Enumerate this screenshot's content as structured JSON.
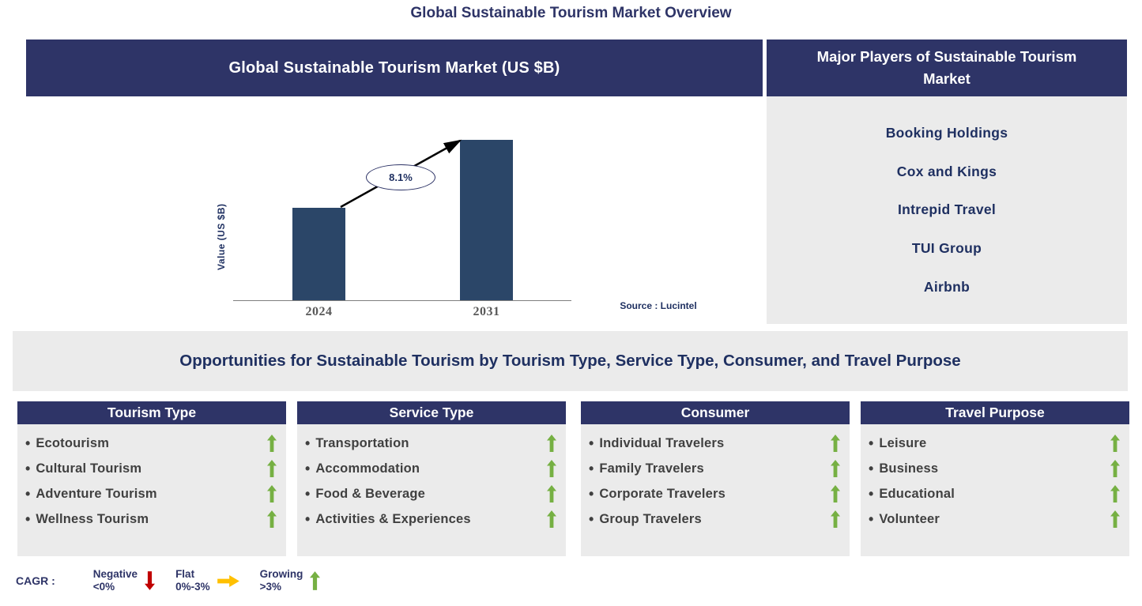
{
  "page_title": "Global Sustainable Tourism Market Overview",
  "chart_panel": {
    "header": "Global Sustainable Tourism Market (US $B)",
    "source": "Source : Lucintel"
  },
  "chart_data": {
    "type": "bar",
    "title": "Global Sustainable Tourism Market (US $B)",
    "categories": [
      "2024",
      "2031"
    ],
    "values": [
      1,
      1.73
    ],
    "ylabel": "Value (US $B)",
    "xlabel": "",
    "cagr_annotation": "8.1%",
    "bar_color": "#2B4668",
    "grid": false,
    "legend_position": "none",
    "y_axis_ticks_shown": false
  },
  "players_panel": {
    "header": "Major Players of Sustainable Tourism Market",
    "players": [
      "Booking Holdings",
      "Cox and Kings",
      "Intrepid Travel",
      "TUI Group",
      "Airbnb"
    ]
  },
  "opportunities_banner": "Opportunities for Sustainable Tourism by Tourism Type, Service Type, Consumer, and Travel Purpose",
  "columns": [
    {
      "header": "Tourism Type",
      "items": [
        "Ecotourism",
        "Cultural Tourism",
        "Adventure Tourism",
        "Wellness Tourism"
      ],
      "trend": "up"
    },
    {
      "header": "Service Type",
      "items": [
        "Transportation",
        "Accommodation",
        "Food & Beverage",
        "Activities & Experiences"
      ],
      "trend": "up"
    },
    {
      "header": "Consumer",
      "items": [
        "Individual Travelers",
        "Family Travelers",
        "Corporate Travelers",
        "Group Travelers"
      ],
      "trend": "up"
    },
    {
      "header": "Travel Purpose",
      "items": [
        "Leisure",
        "Business",
        "Educational",
        "Volunteer"
      ],
      "trend": "up"
    }
  ],
  "legend": {
    "label": "CAGR :",
    "entries": [
      {
        "name": "Negative",
        "range": "<0%",
        "direction": "down",
        "color": "#C00000"
      },
      {
        "name": "Flat",
        "range": "0%-3%",
        "direction": "right",
        "color": "#FFC000"
      },
      {
        "name": "Growing",
        "range": ">3%",
        "direction": "up",
        "color": "#76B043"
      }
    ]
  },
  "colors": {
    "navy": "#2E3467",
    "bar": "#2B4668",
    "panel_gray": "#EBEBEB",
    "green": "#76B043",
    "red": "#C00000",
    "orange": "#FFC000",
    "text_dark": "#404040",
    "text_navy": "#1F3061"
  }
}
